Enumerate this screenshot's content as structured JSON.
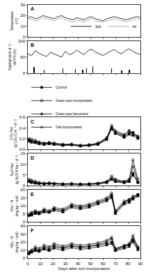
{
  "chart_data": [
    {
      "type": "line",
      "annotations": [
        "A"
      ],
      "ylabel": "Temperature (°C)",
      "x": [
        0,
        3,
        6,
        9,
        12,
        15,
        18,
        21,
        24,
        27,
        30,
        33,
        36,
        39,
        42,
        45,
        48,
        51,
        54,
        57,
        60,
        63,
        66,
        69,
        72,
        75,
        78,
        81,
        84,
        87,
        90
      ],
      "series": [
        {
          "name": "Soil",
          "color": "#000000",
          "line_style": "solid",
          "values": [
            18,
            19,
            17,
            18,
            20,
            19,
            18,
            17,
            19,
            20,
            18,
            17,
            16,
            18,
            17,
            16,
            18,
            19,
            17,
            16,
            15,
            17,
            18,
            19,
            18,
            17,
            16,
            17,
            18,
            19,
            18
          ]
        },
        {
          "name": "Air",
          "color": "#999999",
          "line_style": "solid",
          "values": [
            16,
            17,
            15,
            16,
            18,
            17,
            16,
            15,
            17,
            18,
            16,
            15,
            14,
            16,
            15,
            14,
            16,
            17,
            15,
            14,
            14,
            15,
            16,
            17,
            16,
            15,
            14,
            15,
            16,
            17,
            16
          ]
        }
      ],
      "xlim": [
        0,
        90
      ],
      "xticks": [
        0,
        10,
        20,
        30,
        40,
        50,
        60,
        70,
        80,
        90
      ],
      "ylim": [
        0,
        30
      ],
      "yticks": [
        0,
        10,
        20,
        30
      ],
      "grid": false,
      "legend": "lower right",
      "tick_labels": "y"
    },
    {
      "type": "line",
      "annotations": [
        "B"
      ],
      "ylabel": [
        "Rainfall (mm d⁻¹)",
        "WFPS (%)"
      ],
      "series": [
        {
          "type": "bar",
          "color": "#000000",
          "x": [
            5,
            13,
            28,
            38,
            44,
            47,
            52,
            67,
            75,
            81
          ],
          "values": [
            20,
            10,
            15,
            12,
            10,
            16,
            22,
            14,
            8,
            10
          ]
        },
        {
          "type": "line",
          "color": "#000000",
          "line_style": "solid",
          "x": [
            0,
            3,
            6,
            9,
            12,
            15,
            18,
            21,
            24,
            27,
            30,
            33,
            36,
            39,
            42,
            45,
            48,
            51,
            54,
            57,
            60,
            63,
            66,
            69,
            72,
            75,
            78,
            81,
            84,
            87,
            90
          ],
          "values": [
            60,
            55,
            70,
            62,
            56,
            52,
            65,
            60,
            55,
            50,
            68,
            58,
            62,
            72,
            64,
            58,
            70,
            75,
            66,
            60,
            55,
            62,
            68,
            74,
            65,
            60,
            70,
            76,
            68,
            62,
            58
          ]
        }
      ],
      "xlim": [
        0,
        90
      ],
      "xticks": [
        0,
        10,
        20,
        30,
        40,
        50,
        60,
        70,
        80,
        90
      ],
      "ylim": [
        0,
        100
      ],
      "yticks": [
        0,
        50,
        100
      ],
      "grid": false,
      "tick_labels": "y"
    },
    {
      "type": "line",
      "annotations": [
        "C"
      ],
      "ylabel": "CO₂ flux (g CO₂-C m⁻² d⁻¹)",
      "x": [
        1,
        3,
        6,
        9,
        13,
        17,
        21,
        28,
        35,
        42,
        49,
        56,
        63,
        67,
        70,
        77,
        81,
        84,
        88
      ],
      "series": [
        {
          "name": "Control",
          "color": "#000000",
          "marker": "circle",
          "values": [
            0.18,
            0.15,
            0.14,
            0.12,
            0.1,
            0.12,
            0.1,
            0.08,
            0.09,
            0.07,
            0.08,
            0.1,
            0.2,
            0.4,
            0.3,
            0.25,
            0.3,
            0.32,
            0.22
          ]
        },
        {
          "name": "Grass pea incorporated",
          "color": "#000000",
          "marker": "circle-open",
          "values": [
            0.2,
            0.19,
            0.17,
            0.14,
            0.12,
            0.13,
            0.12,
            0.1,
            0.1,
            0.08,
            0.09,
            0.12,
            0.22,
            0.45,
            0.35,
            0.28,
            0.34,
            0.3,
            0.25
          ]
        },
        {
          "name": "Grass pea harvested",
          "color": "#000000",
          "marker": "triangle-up",
          "values": [
            0.15,
            0.13,
            0.12,
            0.1,
            0.09,
            0.1,
            0.09,
            0.07,
            0.08,
            0.06,
            0.07,
            0.09,
            0.18,
            0.38,
            0.3,
            0.22,
            0.28,
            0.26,
            0.2
          ]
        },
        {
          "name": "Oat incorporated",
          "color": "#000000",
          "marker": "triangle-up-open",
          "values": [
            0.17,
            0.16,
            0.15,
            0.13,
            0.11,
            0.12,
            0.11,
            0.09,
            0.09,
            0.07,
            0.08,
            0.11,
            0.21,
            0.42,
            0.33,
            0.26,
            0.36,
            0.28,
            0.24
          ]
        }
      ],
      "xlim": [
        0,
        90
      ],
      "xticks": [
        0,
        10,
        20,
        30,
        40,
        50,
        60,
        70,
        80,
        90
      ],
      "ylim": [
        0,
        0.6
      ],
      "yticks": [
        {
          "value": 0,
          "label": "0.0"
        },
        0.2,
        0.4,
        0.6
      ],
      "grid": false,
      "legend": "top",
      "tick_labels": "y"
    },
    {
      "type": "line",
      "annotations": [
        "D"
      ],
      "ylabel": "N₂O flux (g N₂O-N ha⁻¹ d⁻¹)",
      "x": [
        1,
        3,
        6,
        9,
        13,
        17,
        21,
        28,
        35,
        42,
        49,
        56,
        63,
        67,
        70,
        77,
        81,
        84,
        88
      ],
      "series": [
        {
          "color": "#000000",
          "marker": "circle",
          "values": [
            2,
            1.5,
            1.2,
            1,
            0.8,
            1,
            0.9,
            0.7,
            0.8,
            0.6,
            0.7,
            0.9,
            1.5,
            3,
            2,
            1.5,
            2,
            5,
            1.5
          ]
        },
        {
          "color": "#000000",
          "marker": "circle-open",
          "values": [
            3,
            2.5,
            2,
            1.5,
            1.2,
            1.3,
            1.1,
            0.9,
            1,
            0.8,
            0.9,
            1.2,
            2,
            4.5,
            3,
            2,
            3,
            12,
            3
          ]
        },
        {
          "color": "#000000",
          "marker": "triangle-up",
          "values": [
            1.8,
            1.4,
            1.1,
            0.9,
            0.8,
            0.9,
            0.8,
            0.6,
            0.7,
            0.6,
            0.6,
            0.8,
            1.4,
            2.8,
            1.8,
            1.3,
            1.8,
            6,
            1.4
          ]
        },
        {
          "color": "#000000",
          "marker": "triangle-up-open",
          "values": [
            2.5,
            2,
            1.6,
            1.2,
            1,
            1.1,
            1,
            0.8,
            0.9,
            0.7,
            0.8,
            1,
            1.8,
            3.5,
            2.5,
            1.8,
            2.5,
            9,
            2
          ]
        }
      ],
      "xlim": [
        0,
        90
      ],
      "xticks": [
        0,
        10,
        20,
        30,
        40,
        50,
        60,
        70,
        80,
        90
      ],
      "ylim": [
        0,
        15
      ],
      "yticks": [
        0,
        5,
        10,
        15
      ],
      "grid": false,
      "tick_labels": "y"
    },
    {
      "type": "line",
      "annotations": [
        "E"
      ],
      "ylabel": "NH₄⁺-N (mg kg⁻¹ soil)",
      "x": [
        1,
        3,
        6,
        9,
        13,
        17,
        21,
        28,
        35,
        42,
        49,
        56,
        63,
        67,
        70,
        77,
        81,
        84,
        88
      ],
      "series": [
        {
          "color": "#000000",
          "marker": "circle",
          "values": [
            4,
            5,
            6,
            5,
            7,
            6,
            8,
            7,
            10,
            9,
            10,
            12,
            14,
            16,
            6,
            12,
            13,
            15,
            17
          ]
        },
        {
          "color": "#000000",
          "marker": "circle-open",
          "values": [
            5,
            6,
            7,
            6,
            8,
            7,
            9,
            8,
            11,
            10,
            11,
            13,
            15,
            18,
            7,
            13,
            14,
            16,
            17
          ]
        },
        {
          "color": "#000000",
          "marker": "triangle-up",
          "values": [
            4,
            4,
            5,
            5,
            6,
            6,
            7,
            6,
            9,
            8,
            9,
            11,
            13,
            15,
            5,
            11,
            12,
            14,
            16
          ]
        },
        {
          "color": "#000000",
          "marker": "triangle-up-open",
          "values": [
            4,
            5,
            6,
            6,
            7,
            6,
            8,
            7,
            10,
            9,
            10,
            12,
            14,
            17,
            6,
            12,
            14,
            15,
            17
          ]
        }
      ],
      "xlim": [
        0,
        90
      ],
      "xticks": [
        0,
        10,
        20,
        30,
        40,
        50,
        60,
        70,
        80,
        90
      ],
      "ylim": [
        0,
        20
      ],
      "yticks": [
        0,
        5,
        10,
        15,
        20
      ],
      "grid": false,
      "tick_labels": "y"
    },
    {
      "type": "line",
      "annotations": [
        "F"
      ],
      "ylabel": "NO₃⁻-N (mg kg⁻¹ soil)",
      "xlabel": "Days after soil incorporation",
      "x": [
        1,
        3,
        6,
        9,
        13,
        17,
        21,
        28,
        35,
        42,
        49,
        56,
        63,
        67,
        70,
        77,
        81,
        84,
        88
      ],
      "series": [
        {
          "color": "#000000",
          "marker": "circle",
          "values": [
            6,
            8,
            10,
            9,
            12,
            10,
            14,
            12,
            15,
            13,
            14,
            16,
            18,
            20,
            10,
            14,
            16,
            22,
            12
          ]
        },
        {
          "color": "#000000",
          "marker": "circle-open",
          "values": [
            8,
            10,
            14,
            12,
            16,
            14,
            18,
            15,
            18,
            16,
            17,
            19,
            22,
            26,
            12,
            16,
            18,
            28,
            14
          ]
        },
        {
          "color": "#000000",
          "marker": "triangle-up",
          "values": [
            5,
            7,
            9,
            8,
            11,
            9,
            12,
            10,
            13,
            11,
            12,
            14,
            16,
            18,
            9,
            12,
            14,
            20,
            10
          ]
        },
        {
          "color": "#000000",
          "marker": "triangle-up-open",
          "values": [
            7,
            9,
            12,
            10,
            14,
            12,
            16,
            13,
            16,
            14,
            15,
            17,
            20,
            24,
            11,
            15,
            17,
            25,
            13
          ]
        }
      ],
      "xlim": [
        0,
        90
      ],
      "xticks": [
        0,
        10,
        20,
        30,
        40,
        50,
        60,
        70,
        80,
        90
      ],
      "ylim": [
        0,
        40
      ],
      "yticks": [
        0,
        10,
        20,
        30,
        40
      ],
      "grid": false
    }
  ]
}
